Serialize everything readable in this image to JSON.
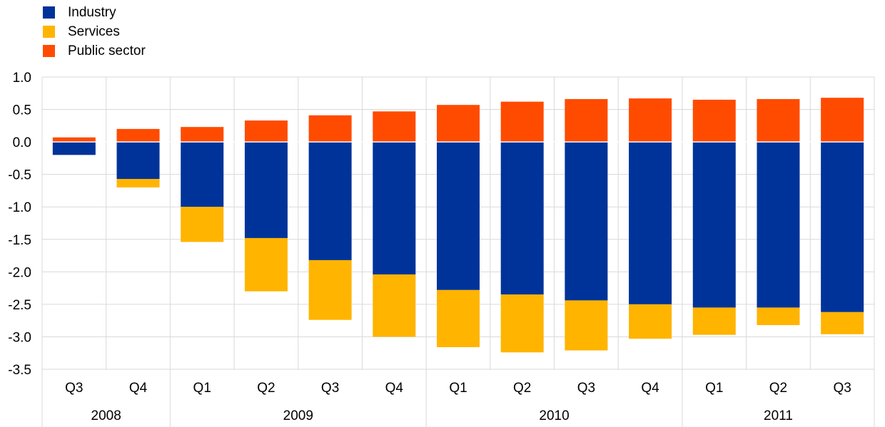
{
  "chart_data": {
    "type": "bar",
    "stacked": true,
    "categories": [
      "Q3",
      "Q4",
      "Q1",
      "Q2",
      "Q3",
      "Q4",
      "Q1",
      "Q2",
      "Q3",
      "Q4",
      "Q1",
      "Q2",
      "Q3"
    ],
    "year_groups": [
      {
        "label": "2008",
        "count": 2
      },
      {
        "label": "2009",
        "count": 4
      },
      {
        "label": "2010",
        "count": 4
      },
      {
        "label": "2011",
        "count": 3
      }
    ],
    "series": [
      {
        "name": "Industry",
        "color": "#003399",
        "values": [
          -0.2,
          -0.57,
          -1.0,
          -1.48,
          -1.82,
          -2.04,
          -2.28,
          -2.35,
          -2.44,
          -2.5,
          -2.55,
          -2.55,
          -2.62
        ]
      },
      {
        "name": "Services",
        "color": "#FFB400",
        "values": [
          0.0,
          -0.13,
          -0.54,
          -0.82,
          -0.92,
          -0.96,
          -0.88,
          -0.89,
          -0.77,
          -0.53,
          -0.42,
          -0.27,
          -0.34
        ]
      },
      {
        "name": "Public sector",
        "color": "#FF4B00",
        "values": [
          0.07,
          0.2,
          0.23,
          0.33,
          0.41,
          0.47,
          0.57,
          0.62,
          0.66,
          0.67,
          0.65,
          0.66,
          0.68
        ]
      }
    ],
    "ylim": [
      -3.5,
      1.0
    ],
    "yticks": [
      "1.0",
      "0.5",
      "0.0",
      "-0.5",
      "-1.0",
      "-1.5",
      "-2.0",
      "-2.5",
      "-3.0",
      "-3.5"
    ],
    "ytick_values": [
      1.0,
      0.5,
      0.0,
      -0.5,
      -1.0,
      -1.5,
      -2.0,
      -2.5,
      -3.0,
      -3.5
    ],
    "grid": true,
    "legend_position": "top-left"
  }
}
